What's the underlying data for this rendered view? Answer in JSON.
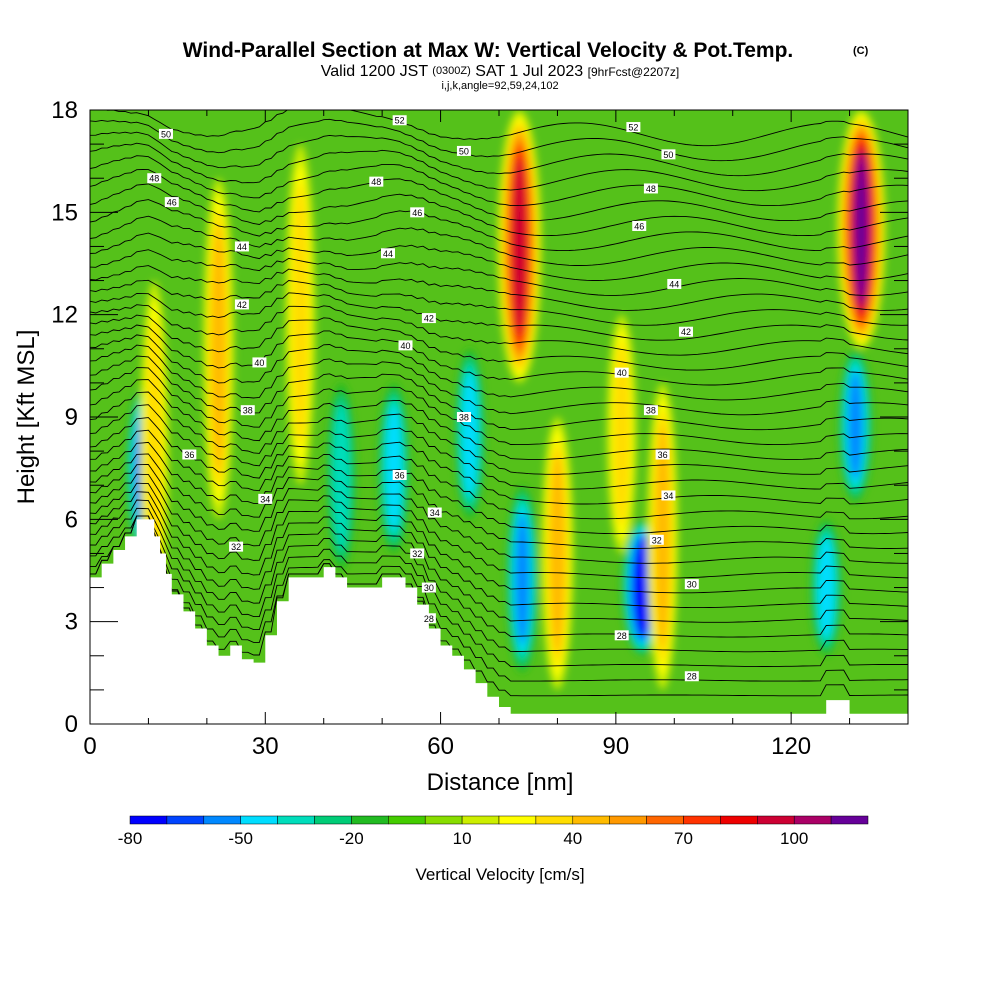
{
  "title": {
    "main": "Wind-Parallel Section at Max W: Vertical Velocity & Pot.Temp.",
    "copyright": "(C)",
    "valid_prefix": "Valid 1200 JST",
    "valid_utc": "(0300Z)",
    "valid_date": "SAT 1 Jul 2023",
    "forecast": "[9hrFcst@2207z]",
    "section_params": "i,j,k,angle=92,59,24,102"
  },
  "chart_data": {
    "type": "heatmap",
    "xlabel": "Distance [nm]",
    "ylabel": "Height [Kft MSL]",
    "xlim": [
      0,
      140
    ],
    "ylim": [
      0,
      18
    ],
    "x_ticks": [
      "0",
      "30",
      "60",
      "90",
      "120"
    ],
    "y_ticks": [
      "0",
      "3",
      "6",
      "9",
      "12",
      "15",
      "18"
    ],
    "terrain": {
      "x": [
        0,
        2,
        4,
        6,
        8,
        10,
        11,
        12,
        13,
        14,
        16,
        18,
        20,
        22,
        24,
        26,
        28,
        30,
        32,
        34,
        38,
        40,
        42,
        44,
        46,
        48,
        50,
        52,
        54,
        56,
        58,
        60,
        62,
        64,
        66,
        68,
        70,
        72,
        74,
        76,
        80,
        90,
        100,
        110,
        120,
        124,
        126,
        130,
        134,
        140
      ],
      "height_kft": [
        4.3,
        4.7,
        5.1,
        5.5,
        6.0,
        6.0,
        5.5,
        5.0,
        4.4,
        3.8,
        3.3,
        2.8,
        2.3,
        2.0,
        2.3,
        1.9,
        1.8,
        2.6,
        3.6,
        4.3,
        4.3,
        4.6,
        4.3,
        4.0,
        4.0,
        4.0,
        4.3,
        4.3,
        4.0,
        3.5,
        2.8,
        2.3,
        2.0,
        1.6,
        1.2,
        0.8,
        0.5,
        0.3,
        0.3,
        0.3,
        0.3,
        0.3,
        0.3,
        0.3,
        0.3,
        0.3,
        0.7,
        0.3,
        0.3,
        0.3
      ]
    },
    "vertical_velocity_features": [
      {
        "x": 9.5,
        "z": [
          4.8,
          10
        ],
        "w": -70
      },
      {
        "x": 11,
        "z": [
          3,
          13
        ],
        "w": 25
      },
      {
        "x": 22,
        "z": [
          6,
          16
        ],
        "w": 35
      },
      {
        "x": 36,
        "z": [
          7,
          17
        ],
        "w": 30
      },
      {
        "x": 43,
        "z": [
          4.5,
          10
        ],
        "w": -30
      },
      {
        "x": 52,
        "z": [
          5,
          10
        ],
        "w": -40
      },
      {
        "x": 65,
        "z": [
          6,
          11
        ],
        "w": -35
      },
      {
        "x": 73.5,
        "z": [
          10,
          18
        ],
        "w": 90
      },
      {
        "x": 74,
        "z": [
          1.5,
          7
        ],
        "w": -45
      },
      {
        "x": 80,
        "z": [
          1,
          9
        ],
        "w": 40
      },
      {
        "x": 91,
        "z": [
          5,
          12
        ],
        "w": 30
      },
      {
        "x": 94.5,
        "z": [
          2,
          6
        ],
        "w": -80
      },
      {
        "x": 98,
        "z": [
          1,
          10
        ],
        "w": 35
      },
      {
        "x": 126,
        "z": [
          2,
          6
        ],
        "w": -40
      },
      {
        "x": 132,
        "z": [
          11,
          18
        ],
        "w": 110
      },
      {
        "x": 131,
        "z": [
          6.5,
          11
        ],
        "w": -50
      }
    ],
    "pot_temp_labels": [
      {
        "text": "52",
        "x": 53,
        "z": 17.7
      },
      {
        "text": "52",
        "x": 93,
        "z": 17.5
      },
      {
        "text": "50",
        "x": 13,
        "z": 17.3
      },
      {
        "text": "50",
        "x": 64,
        "z": 16.8
      },
      {
        "text": "50",
        "x": 99,
        "z": 16.7
      },
      {
        "text": "48",
        "x": 11,
        "z": 16.0
      },
      {
        "text": "48",
        "x": 49,
        "z": 15.9
      },
      {
        "text": "48",
        "x": 96,
        "z": 15.7
      },
      {
        "text": "46",
        "x": 14,
        "z": 15.3
      },
      {
        "text": "46",
        "x": 56,
        "z": 15.0
      },
      {
        "text": "46",
        "x": 94,
        "z": 14.6
      },
      {
        "text": "44",
        "x": 26,
        "z": 14.0
      },
      {
        "text": "44",
        "x": 51,
        "z": 13.8
      },
      {
        "text": "44",
        "x": 100,
        "z": 12.9
      },
      {
        "text": "42",
        "x": 26,
        "z": 12.3
      },
      {
        "text": "42",
        "x": 58,
        "z": 11.9
      },
      {
        "text": "42",
        "x": 102,
        "z": 11.5
      },
      {
        "text": "40",
        "x": 29,
        "z": 10.6
      },
      {
        "text": "40",
        "x": 54,
        "z": 11.1
      },
      {
        "text": "40",
        "x": 91,
        "z": 10.3
      },
      {
        "text": "38",
        "x": 27,
        "z": 9.2
      },
      {
        "text": "38",
        "x": 64,
        "z": 9.0
      },
      {
        "text": "38",
        "x": 96,
        "z": 9.2
      },
      {
        "text": "36",
        "x": 17,
        "z": 7.9
      },
      {
        "text": "36",
        "x": 53,
        "z": 7.3
      },
      {
        "text": "36",
        "x": 98,
        "z": 7.9
      },
      {
        "text": "34",
        "x": 30,
        "z": 6.6
      },
      {
        "text": "34",
        "x": 59,
        "z": 6.2
      },
      {
        "text": "34",
        "x": 99,
        "z": 6.7
      },
      {
        "text": "32",
        "x": 25,
        "z": 5.2
      },
      {
        "text": "32",
        "x": 56,
        "z": 5.0
      },
      {
        "text": "32",
        "x": 97,
        "z": 5.4
      },
      {
        "text": "30",
        "x": 58,
        "z": 4.0
      },
      {
        "text": "30",
        "x": 103,
        "z": 4.1
      },
      {
        "text": "28",
        "x": 58,
        "z": 3.1
      },
      {
        "text": "28",
        "x": 91,
        "z": 2.6
      },
      {
        "text": "28",
        "x": 103,
        "z": 1.4
      }
    ]
  },
  "colorbar": {
    "label": "Vertical Velocity [cm/s]",
    "levels": [
      -80,
      -70,
      -60,
      -50,
      -40,
      -30,
      -20,
      -10,
      0,
      10,
      20,
      30,
      40,
      50,
      60,
      70,
      80,
      90,
      100,
      110,
      120
    ],
    "colors": [
      "#0000ff",
      "#0044ff",
      "#0088ff",
      "#00ddff",
      "#00ddbb",
      "#00cc77",
      "#22bb22",
      "#44cc00",
      "#88dd00",
      "#ccee00",
      "#ffff00",
      "#ffdd00",
      "#ffbb00",
      "#ff9900",
      "#ff6600",
      "#ff3300",
      "#ee0000",
      "#cc0033",
      "#aa0066",
      "#660099"
    ],
    "tick_labels": [
      {
        "text": "-80",
        "value": -80
      },
      {
        "text": "-50",
        "value": -50
      },
      {
        "text": "-20",
        "value": -20
      },
      {
        "text": "10",
        "value": 10
      },
      {
        "text": "40",
        "value": 40
      },
      {
        "text": "70",
        "value": 70
      },
      {
        "text": "100",
        "value": 100
      }
    ]
  }
}
